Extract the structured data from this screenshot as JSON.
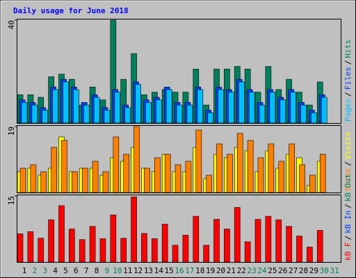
{
  "chart_data": {
    "type": "bar",
    "title": "Daily usage for June 2018",
    "categories": [
      "1",
      "2",
      "3",
      "4",
      "5",
      "6",
      "7",
      "8",
      "9",
      "10",
      "11",
      "12",
      "13",
      "14",
      "15",
      "16",
      "17",
      "18",
      "19",
      "20",
      "21",
      "22",
      "23",
      "24",
      "25",
      "26",
      "27",
      "28",
      "29",
      "30",
      "31"
    ],
    "category_colors": [
      "#000000",
      "#00805c",
      "#00805c",
      "#000000",
      "#000000",
      "#000000",
      "#000000",
      "#000000",
      "#00805c",
      "#00805c",
      "#000000",
      "#000000",
      "#000000",
      "#000000",
      "#000000",
      "#00805c",
      "#00805c",
      "#000000",
      "#000000",
      "#000000",
      "#000000",
      "#000000",
      "#00805c",
      "#00805c",
      "#000000",
      "#000000",
      "#000000",
      "#000000",
      "#000000",
      "#00805c",
      "#00805c"
    ],
    "legend_separator": "/",
    "panels": [
      {
        "ylim": [
          0,
          40
        ],
        "yticks": [
          40
        ],
        "series": [
          {
            "name": "Hits",
            "color": "#00805c",
            "values": [
              11,
              11,
              10,
              18,
              19,
              17,
              7,
              14,
              9,
              40,
              17,
              27,
              11,
              12,
              13,
              12,
              12,
              21,
              7,
              21,
              21,
              22,
              21,
              12,
              22,
              13,
              17,
              12,
              7,
              16,
              null
            ]
          },
          {
            "name": "Files",
            "color": "#0040ff",
            "values": [
              9,
              8,
              6,
              14,
              17,
              14,
              8,
              11,
              6,
              13,
              7,
              16,
              9,
              10,
              14,
              8,
              8,
              14,
              5,
              14,
              13,
              17,
              13,
              8,
              13,
              10,
              13,
              8,
              5,
              11,
              null
            ]
          },
          {
            "name": "Pages",
            "color": "#00c0ff",
            "values": [
              8,
              7,
              5,
              13,
              16,
              13,
              7,
              10,
              5,
              12,
              6,
              15,
              8,
              9,
              13,
              7,
              7,
              13,
              4,
              13,
              12,
              16,
              12,
              7,
              12,
              9,
              12,
              7,
              4,
              10,
              null
            ]
          }
        ]
      },
      {
        "ylim": [
          0,
          19
        ],
        "yticks": [
          19
        ],
        "series": [
          {
            "name": "Visits",
            "color": "#ffff00",
            "values": [
              6,
              7,
              5,
              7,
              16,
              6,
              7,
              7,
              5,
              10,
              9,
              13,
              7,
              6,
              11,
              6,
              6,
              13,
              4,
              11,
              10,
              13,
              12,
              6,
              12,
              7,
              11,
              10,
              2,
              9,
              null
            ]
          },
          {
            "name": "Sites",
            "color": "#ff8000",
            "values": [
              7,
              8,
              6,
              13,
              15,
              6,
              7,
              9,
              6,
              16,
              11,
              19,
              7,
              10,
              11,
              8,
              9,
              18,
              5,
              14,
              11,
              17,
              15,
              10,
              14,
              9,
              14,
              8,
              5,
              11,
              null
            ]
          }
        ]
      },
      {
        "ylim": [
          0,
          15
        ],
        "yticks": [
          15
        ],
        "series": [
          {
            "name": "kB Out",
            "color": "#00805c",
            "values": [
              null,
              null,
              null,
              null,
              null,
              null,
              null,
              null,
              null,
              null,
              null,
              null,
              null,
              null,
              null,
              null,
              null,
              null,
              null,
              null,
              null,
              null,
              null,
              null,
              null,
              null,
              null,
              null,
              null,
              null,
              null
            ]
          },
          {
            "name": "kB In",
            "color": "#0040ff",
            "values": [
              null,
              null,
              null,
              null,
              null,
              null,
              null,
              null,
              null,
              null,
              null,
              null,
              null,
              null,
              null,
              null,
              null,
              null,
              null,
              null,
              null,
              null,
              null,
              null,
              null,
              null,
              null,
              null,
              null,
              null,
              null
            ]
          },
          {
            "name": "kB F",
            "color": "#ff0000",
            "values": [
              6.4,
              6.9,
              5.4,
              9.6,
              12.8,
              7.5,
              5.1,
              8.1,
              5.3,
              10.7,
              5.4,
              14.8,
              6.5,
              5.3,
              8.6,
              3.8,
              6.1,
              10.4,
              3.8,
              9.7,
              7.5,
              12.4,
              4.6,
              9.7,
              10.4,
              9.6,
              8.1,
              5.9,
              3.4,
              7.2,
              null
            ]
          }
        ]
      }
    ]
  }
}
